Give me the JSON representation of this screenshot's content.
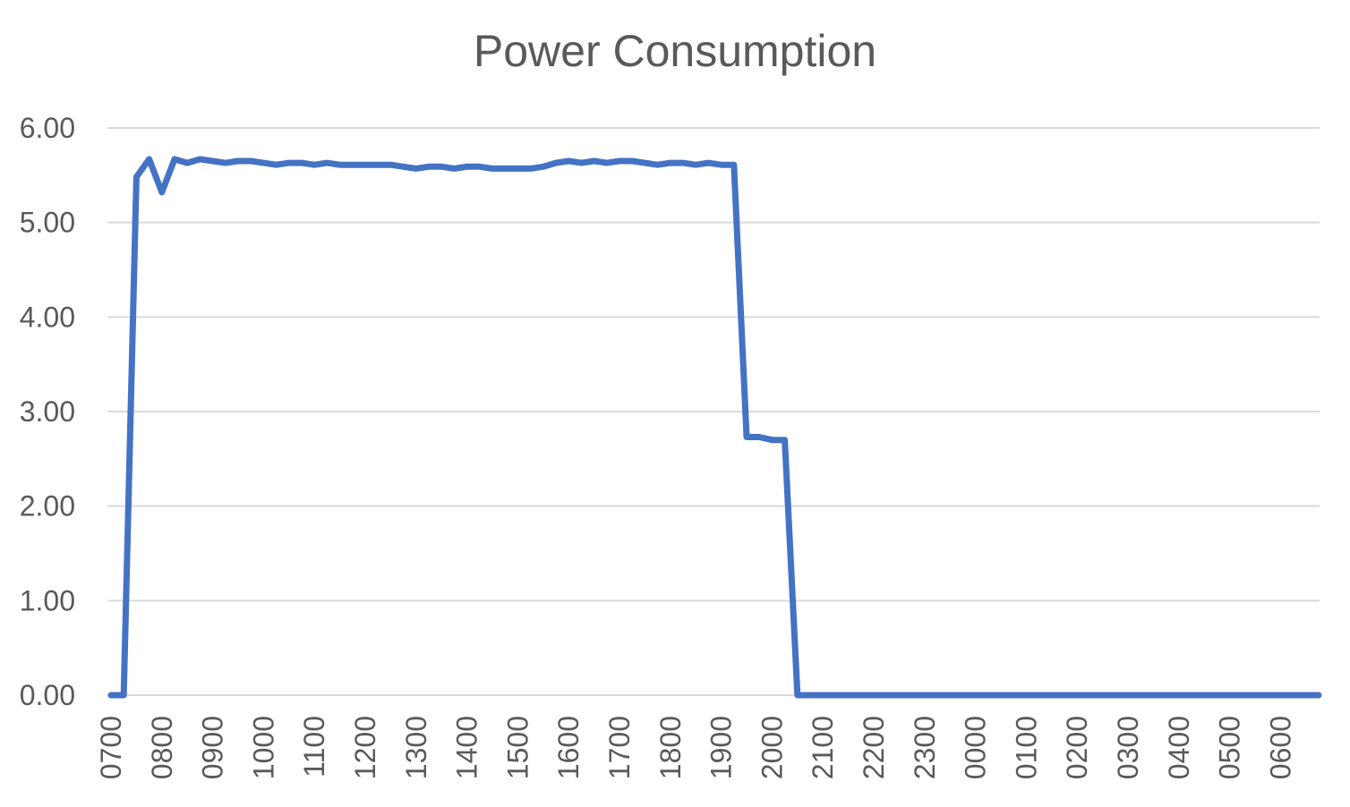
{
  "chart_data": {
    "type": "line",
    "title": "Power Consumption",
    "xlabel": "",
    "ylabel": "",
    "ylim": [
      0,
      6
    ],
    "y_ticks": [
      "0.00",
      "1.00",
      "2.00",
      "3.00",
      "4.00",
      "5.00",
      "6.00"
    ],
    "grid": true,
    "legend": "none",
    "x_tick_labels": [
      "0700",
      "0800",
      "0900",
      "1000",
      "1100",
      "1200",
      "1300",
      "1400",
      "1500",
      "1600",
      "1700",
      "1800",
      "1900",
      "2000",
      "2100",
      "2200",
      "2300",
      "0000",
      "0100",
      "0200",
      "0300",
      "0400",
      "0500",
      "0600"
    ],
    "series": [
      {
        "color": "#4472c4",
        "x": [
          "0700",
          "0715",
          "0730",
          "0745",
          "0800",
          "0815",
          "0830",
          "0845",
          "0900",
          "0915",
          "0930",
          "0945",
          "1000",
          "1015",
          "1030",
          "1045",
          "1100",
          "1115",
          "1130",
          "1145",
          "1200",
          "1215",
          "1230",
          "1245",
          "1300",
          "1315",
          "1330",
          "1345",
          "1400",
          "1415",
          "1430",
          "1445",
          "1500",
          "1515",
          "1530",
          "1545",
          "1600",
          "1615",
          "1630",
          "1645",
          "1700",
          "1715",
          "1730",
          "1745",
          "1800",
          "1815",
          "1830",
          "1845",
          "1900",
          "1915",
          "1930",
          "1945",
          "2000",
          "2015",
          "2030",
          "2045",
          "2100",
          "2115",
          "2130",
          "2145",
          "2200",
          "2215",
          "2230",
          "2245",
          "2300",
          "2315",
          "2330",
          "2345",
          "0000",
          "0015",
          "0030",
          "0045",
          "0100",
          "0115",
          "0130",
          "0145",
          "0200",
          "0215",
          "0230",
          "0245",
          "0300",
          "0315",
          "0330",
          "0345",
          "0400",
          "0415",
          "0430",
          "0445",
          "0500",
          "0515",
          "0530",
          "0545",
          "0600",
          "0615",
          "0630",
          "0645"
        ],
        "values": [
          0.0,
          0.0,
          5.48,
          5.67,
          5.32,
          5.67,
          5.63,
          5.67,
          5.65,
          5.63,
          5.65,
          5.65,
          5.63,
          5.61,
          5.63,
          5.63,
          5.61,
          5.63,
          5.61,
          5.61,
          5.61,
          5.61,
          5.61,
          5.59,
          5.57,
          5.59,
          5.59,
          5.57,
          5.59,
          5.59,
          5.57,
          5.57,
          5.57,
          5.57,
          5.59,
          5.63,
          5.65,
          5.63,
          5.65,
          5.63,
          5.65,
          5.65,
          5.63,
          5.61,
          5.63,
          5.63,
          5.61,
          5.63,
          5.61,
          5.61,
          2.73,
          2.73,
          2.7,
          2.7,
          0.0,
          0.0,
          0.0,
          0.0,
          0.0,
          0.0,
          0.0,
          0.0,
          0.0,
          0.0,
          0.0,
          0.0,
          0.0,
          0.0,
          0.0,
          0.0,
          0.0,
          0.0,
          0.0,
          0.0,
          0.0,
          0.0,
          0.0,
          0.0,
          0.0,
          0.0,
          0.0,
          0.0,
          0.0,
          0.0,
          0.0,
          0.0,
          0.0,
          0.0,
          0.0,
          0.0,
          0.0,
          0.0,
          0.0,
          0.0,
          0.0,
          0.0
        ]
      }
    ]
  }
}
